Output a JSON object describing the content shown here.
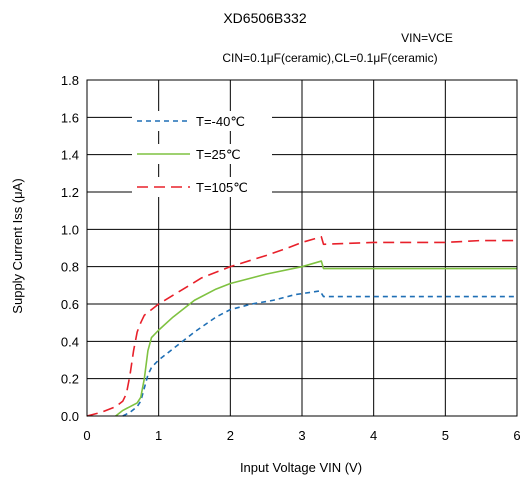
{
  "chart_data": {
    "type": "line",
    "title": "XD6506B332",
    "subtitle_line1": "VIN=VCE",
    "subtitle_line2": "CIN=0.1μF(ceramic),CL=0.1μF(ceramic)",
    "xlabel": "Input Voltage VIN (V)",
    "ylabel": "Supply Current Iss (μA)",
    "xlim": [
      0,
      6
    ],
    "ylim": [
      0,
      1.8
    ],
    "x_ticks": [
      0,
      1,
      2,
      3,
      4,
      5,
      6
    ],
    "x_tick_labels": [
      "0",
      "1",
      "2",
      "3",
      "4",
      "5",
      "6"
    ],
    "y_ticks": [
      0,
      0.2,
      0.4,
      0.6,
      0.8,
      1.0,
      1.2,
      1.4,
      1.6,
      1.8
    ],
    "y_tick_labels": [
      "0.0",
      "0.2",
      "0.4",
      "0.6",
      "0.8",
      "1.0",
      "1.2",
      "1.4",
      "1.6",
      "1.8"
    ],
    "grid": true,
    "legend_position": "top-left",
    "series": [
      {
        "name": "T=-40℃",
        "color": "#1f6fb5",
        "dash": "dashed-short",
        "points": [
          [
            0.5,
            0.0
          ],
          [
            0.6,
            0.02
          ],
          [
            0.7,
            0.05
          ],
          [
            0.75,
            0.08
          ],
          [
            0.8,
            0.15
          ],
          [
            0.85,
            0.22
          ],
          [
            0.9,
            0.26
          ],
          [
            1.0,
            0.3
          ],
          [
            1.2,
            0.36
          ],
          [
            1.5,
            0.45
          ],
          [
            1.8,
            0.53
          ],
          [
            2.0,
            0.57
          ],
          [
            2.3,
            0.6
          ],
          [
            2.6,
            0.62
          ],
          [
            2.9,
            0.65
          ],
          [
            3.25,
            0.67
          ],
          [
            3.3,
            0.64
          ],
          [
            4.0,
            0.64
          ],
          [
            5.0,
            0.64
          ],
          [
            6.0,
            0.64
          ]
        ]
      },
      {
        "name": "T=25℃",
        "color": "#7fc241",
        "dash": "solid",
        "points": [
          [
            0.4,
            0.0
          ],
          [
            0.5,
            0.03
          ],
          [
            0.6,
            0.05
          ],
          [
            0.7,
            0.07
          ],
          [
            0.75,
            0.1
          ],
          [
            0.8,
            0.2
          ],
          [
            0.85,
            0.35
          ],
          [
            0.9,
            0.42
          ],
          [
            1.0,
            0.46
          ],
          [
            1.2,
            0.53
          ],
          [
            1.5,
            0.62
          ],
          [
            1.8,
            0.68
          ],
          [
            2.0,
            0.71
          ],
          [
            2.5,
            0.76
          ],
          [
            3.0,
            0.8
          ],
          [
            3.27,
            0.83
          ],
          [
            3.3,
            0.79
          ],
          [
            4.0,
            0.79
          ],
          [
            5.0,
            0.79
          ],
          [
            6.0,
            0.79
          ]
        ]
      },
      {
        "name": "T=105℃",
        "color": "#e8202a",
        "dash": "dashed-long",
        "points": [
          [
            0.0,
            0.0
          ],
          [
            0.2,
            0.02
          ],
          [
            0.4,
            0.05
          ],
          [
            0.5,
            0.08
          ],
          [
            0.55,
            0.12
          ],
          [
            0.6,
            0.22
          ],
          [
            0.65,
            0.35
          ],
          [
            0.7,
            0.45
          ],
          [
            0.75,
            0.5
          ],
          [
            0.8,
            0.54
          ],
          [
            0.9,
            0.57
          ],
          [
            1.0,
            0.6
          ],
          [
            1.3,
            0.67
          ],
          [
            1.6,
            0.74
          ],
          [
            2.0,
            0.8
          ],
          [
            2.5,
            0.86
          ],
          [
            2.8,
            0.9
          ],
          [
            3.0,
            0.93
          ],
          [
            3.27,
            0.96
          ],
          [
            3.3,
            0.92
          ],
          [
            4.0,
            0.93
          ],
          [
            5.0,
            0.93
          ],
          [
            5.5,
            0.94
          ],
          [
            6.0,
            0.94
          ]
        ]
      }
    ]
  }
}
